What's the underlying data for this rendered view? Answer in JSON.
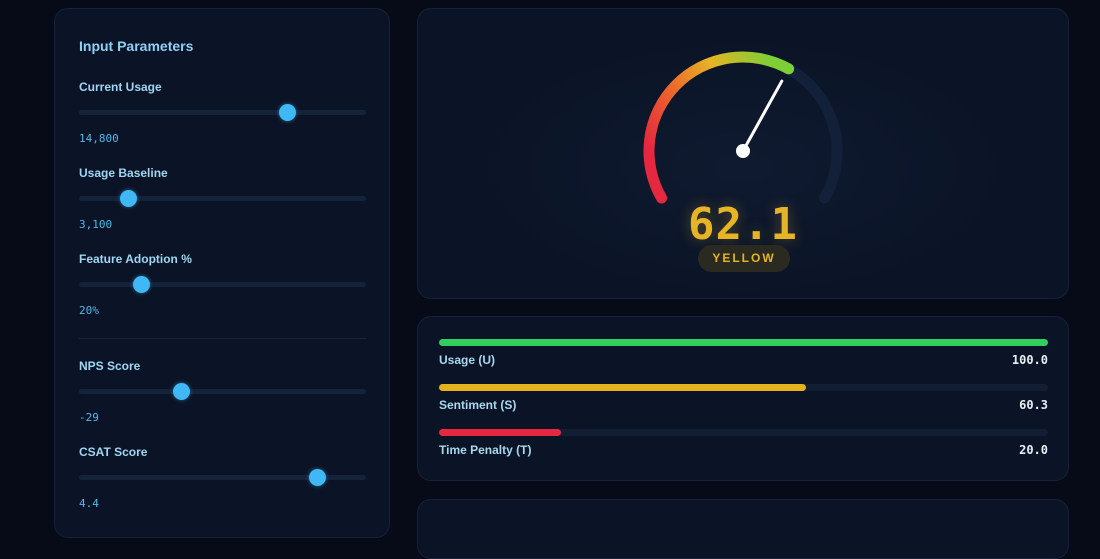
{
  "input_panel": {
    "title": "Input Parameters",
    "params": [
      {
        "label": "Current Usage",
        "value": "14,800",
        "fraction": 0.725
      },
      {
        "label": "Usage Baseline",
        "value": "3,100",
        "fraction": 0.17
      },
      {
        "label": "Feature Adoption %",
        "value": "20%",
        "fraction": 0.215
      },
      {
        "label": "NPS Score",
        "value": "-29",
        "fraction": 0.355
      },
      {
        "label": "CSAT Score",
        "value": "4.4",
        "fraction": 0.83
      }
    ]
  },
  "gauge": {
    "score": "62.1",
    "fraction": 0.621,
    "status": "YELLOW"
  },
  "components": [
    {
      "label": "Usage (U)",
      "value": "100.0",
      "fraction": 1.0,
      "color": "#2fd060"
    },
    {
      "label": "Sentiment (S)",
      "value": "60.3",
      "fraction": 0.603,
      "color": "#e3b21e"
    },
    {
      "label": "Time Penalty (T)",
      "value": "20.0",
      "fraction": 0.2,
      "color": "#e5283f"
    }
  ],
  "colors": {
    "accent": "#3fb8f5",
    "yellow": "#e6b425",
    "green": "#2fd060",
    "red": "#e5283f",
    "background": "#060b17",
    "panel": "#0b1426"
  }
}
